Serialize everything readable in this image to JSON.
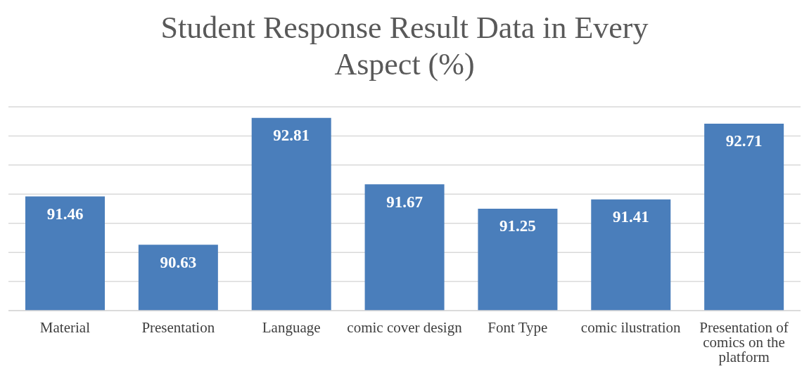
{
  "chart_data": {
    "type": "bar",
    "title": "Student Response Result Data in Every Aspect (%)",
    "categories": [
      "Material",
      "Presentation",
      "Language",
      "comic cover design",
      "Font Type",
      "comic ilustration",
      "Presentation of comics on the platform"
    ],
    "values": [
      91.46,
      90.63,
      92.81,
      91.67,
      91.25,
      91.41,
      92.71
    ],
    "color": "#4a7ebb",
    "ylim": [
      89.5,
      93
    ],
    "yticks": [
      {
        "value": 89.5,
        "label": null
      },
      {
        "value": 90,
        "label": null
      },
      {
        "value": 90.5,
        "label": null
      },
      {
        "value": 91,
        "label": null
      },
      {
        "value": 91.5,
        "label": null
      },
      {
        "value": 92,
        "label": null
      },
      {
        "value": 92.5,
        "label": null
      },
      {
        "value": 93,
        "label": null
      }
    ],
    "grid": "y",
    "tick_labels": "x",
    "data_labels": true
  }
}
